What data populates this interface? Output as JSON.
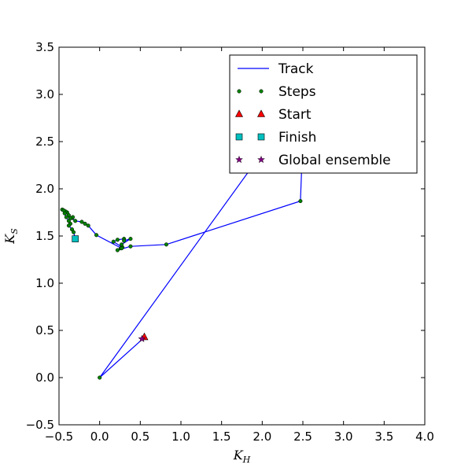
{
  "chart_data": {
    "type": "line",
    "title": "",
    "xlabel": "K",
    "xlabel_sub": "H",
    "ylabel": "K",
    "ylabel_sub": "S",
    "xlim": [
      -0.5,
      4.0
    ],
    "ylim": [
      -0.5,
      3.5
    ],
    "xticks": [
      -0.5,
      0.0,
      0.5,
      1.0,
      1.5,
      2.0,
      2.5,
      3.0,
      3.5,
      4.0
    ],
    "yticks": [
      -0.5,
      0.0,
      0.5,
      1.0,
      1.5,
      2.0,
      2.5,
      3.0,
      3.5
    ],
    "xtick_labels": [
      "−0.5",
      "0.0",
      "0.5",
      "1.0",
      "1.5",
      "2.0",
      "2.5",
      "3.0",
      "3.5",
      "4.0"
    ],
    "ytick_labels": [
      "−0.5",
      "0.0",
      "0.5",
      "1.0",
      "1.5",
      "2.0",
      "2.5",
      "3.0",
      "3.5"
    ],
    "grid": false,
    "legend_position": "top-right",
    "colors": {
      "track": "#0000ff",
      "steps": "#008000",
      "start": "#ff0000",
      "finish": "#00bfbf",
      "global": "#800080"
    },
    "series": [
      {
        "name": "Track",
        "kind": "line",
        "x": [
          0.53,
          0.0,
          2.2,
          2.52,
          2.47,
          0.82,
          0.38,
          0.22,
          0.26,
          0.28,
          0.17,
          0.22,
          0.3,
          0.3,
          0.38,
          0.27,
          0.27,
          -0.04,
          -0.14,
          -0.18,
          -0.22,
          -0.3,
          -0.34,
          -0.33,
          -0.36,
          -0.38,
          -0.4,
          -0.42,
          -0.46,
          -0.44,
          -0.43,
          -0.41,
          -0.38,
          -0.36,
          -0.38,
          -0.34,
          -0.32,
          -0.3
        ],
        "y": [
          0.41,
          0.0,
          2.62,
          3.0,
          1.87,
          1.41,
          1.39,
          1.35,
          1.37,
          1.38,
          1.44,
          1.46,
          1.47,
          1.45,
          1.47,
          1.41,
          1.37,
          1.51,
          1.61,
          1.63,
          1.65,
          1.66,
          1.69,
          1.7,
          1.69,
          1.72,
          1.75,
          1.76,
          1.78,
          1.77,
          1.74,
          1.7,
          1.66,
          1.63,
          1.61,
          1.57,
          1.54,
          1.47
        ]
      },
      {
        "name": "Steps",
        "kind": "markers",
        "x": [
          0.0,
          2.47,
          0.82,
          0.38,
          0.22,
          0.26,
          0.28,
          0.17,
          0.22,
          0.3,
          0.3,
          0.38,
          0.27,
          0.27,
          -0.04,
          -0.14,
          -0.18,
          -0.22,
          -0.3,
          -0.34,
          -0.33,
          -0.36,
          -0.38,
          -0.4,
          -0.42,
          -0.46,
          -0.44,
          -0.43,
          -0.41,
          -0.38,
          -0.36,
          -0.38,
          -0.34,
          -0.32
        ],
        "y": [
          0.0,
          1.87,
          1.41,
          1.39,
          1.35,
          1.37,
          1.38,
          1.44,
          1.46,
          1.47,
          1.45,
          1.47,
          1.41,
          1.37,
          1.51,
          1.61,
          1.63,
          1.65,
          1.66,
          1.69,
          1.7,
          1.69,
          1.72,
          1.75,
          1.76,
          1.78,
          1.77,
          1.74,
          1.7,
          1.66,
          1.63,
          1.61,
          1.57,
          1.54
        ]
      },
      {
        "name": "Start",
        "kind": "triangle",
        "x": [
          0.55
        ],
        "y": [
          0.43
        ]
      },
      {
        "name": "Finish",
        "kind": "square",
        "x": [
          -0.3
        ],
        "y": [
          1.47
        ]
      },
      {
        "name": "Global ensemble",
        "kind": "star",
        "x": [
          0.52
        ],
        "y": [
          0.41
        ]
      }
    ]
  }
}
